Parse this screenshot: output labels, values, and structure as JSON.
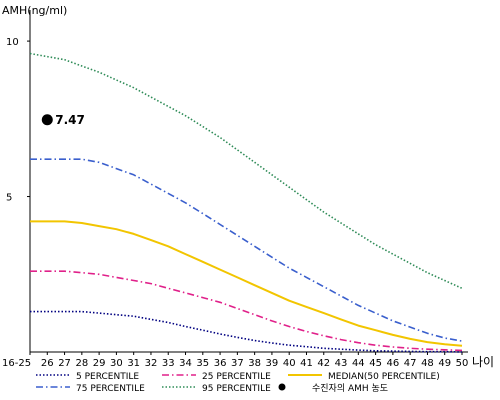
{
  "chart_data": {
    "type": "line",
    "ylabel": "AMH(ng/ml)",
    "xlabel": "나이",
    "ylim": [
      0,
      11
    ],
    "yticks": [
      5,
      10
    ],
    "categories": [
      "16-25",
      "26",
      "27",
      "28",
      "29",
      "30",
      "31",
      "32",
      "33",
      "34",
      "35",
      "36",
      "37",
      "38",
      "39",
      "40",
      "41",
      "42",
      "43",
      "44",
      "45",
      "46",
      "47",
      "48",
      "49",
      "50"
    ],
    "series": [
      {
        "name": "95 PERCENTILE",
        "color": "#2e8b57",
        "dash": "1.5 2",
        "values": [
          9.6,
          9.5,
          9.4,
          9.2,
          9.0,
          8.75,
          8.5,
          8.2,
          7.9,
          7.6,
          7.25,
          6.9,
          6.5,
          6.1,
          5.7,
          5.3,
          4.9,
          4.5,
          4.15,
          3.8,
          3.45,
          3.15,
          2.85,
          2.55,
          2.3,
          2.05
        ]
      },
      {
        "name": "75 PERCENTILE",
        "color": "#3a5fcd",
        "dash": "7 3 1.5 3",
        "values": [
          6.2,
          6.2,
          6.2,
          6.2,
          6.1,
          5.9,
          5.7,
          5.4,
          5.1,
          4.8,
          4.45,
          4.1,
          3.75,
          3.4,
          3.05,
          2.7,
          2.4,
          2.1,
          1.8,
          1.5,
          1.25,
          1.0,
          0.8,
          0.6,
          0.45,
          0.35
        ]
      },
      {
        "name": "MEDIAN(50 PERCENTILE)",
        "color": "#f2c500",
        "dash": "",
        "values": [
          4.2,
          4.2,
          4.2,
          4.15,
          4.05,
          3.95,
          3.8,
          3.6,
          3.4,
          3.15,
          2.9,
          2.65,
          2.4,
          2.15,
          1.9,
          1.65,
          1.45,
          1.25,
          1.05,
          0.85,
          0.7,
          0.55,
          0.42,
          0.32,
          0.25,
          0.2
        ]
      },
      {
        "name": "25 PERCENTILE",
        "color": "#e0218a",
        "dash": "7 3 1.5 3",
        "values": [
          2.6,
          2.6,
          2.6,
          2.55,
          2.5,
          2.4,
          2.3,
          2.2,
          2.05,
          1.9,
          1.75,
          1.6,
          1.4,
          1.2,
          1.0,
          0.82,
          0.66,
          0.52,
          0.4,
          0.3,
          0.22,
          0.16,
          0.12,
          0.09,
          0.07,
          0.05
        ]
      },
      {
        "name": "5 PERCENTILE",
        "color": "#000080",
        "dash": "1.5 2",
        "values": [
          1.3,
          1.3,
          1.3,
          1.3,
          1.25,
          1.2,
          1.15,
          1.05,
          0.95,
          0.82,
          0.7,
          0.58,
          0.47,
          0.37,
          0.29,
          0.22,
          0.17,
          0.12,
          0.09,
          0.06,
          0.04,
          0.03,
          0.02,
          0.01,
          0.01,
          0.0
        ]
      }
    ],
    "patient": {
      "name": "수진자의 AMH 농도",
      "category": "26",
      "value": 7.47,
      "label": "7.47",
      "color": "#000000"
    },
    "legend": {
      "placement": "bottom",
      "order": [
        "5 PERCENTILE",
        "25 PERCENTILE",
        "MEDIAN(50 PERCENTILE)",
        "75 PERCENTILE",
        "95 PERCENTILE",
        "수진자의 AMH 농도"
      ]
    }
  }
}
